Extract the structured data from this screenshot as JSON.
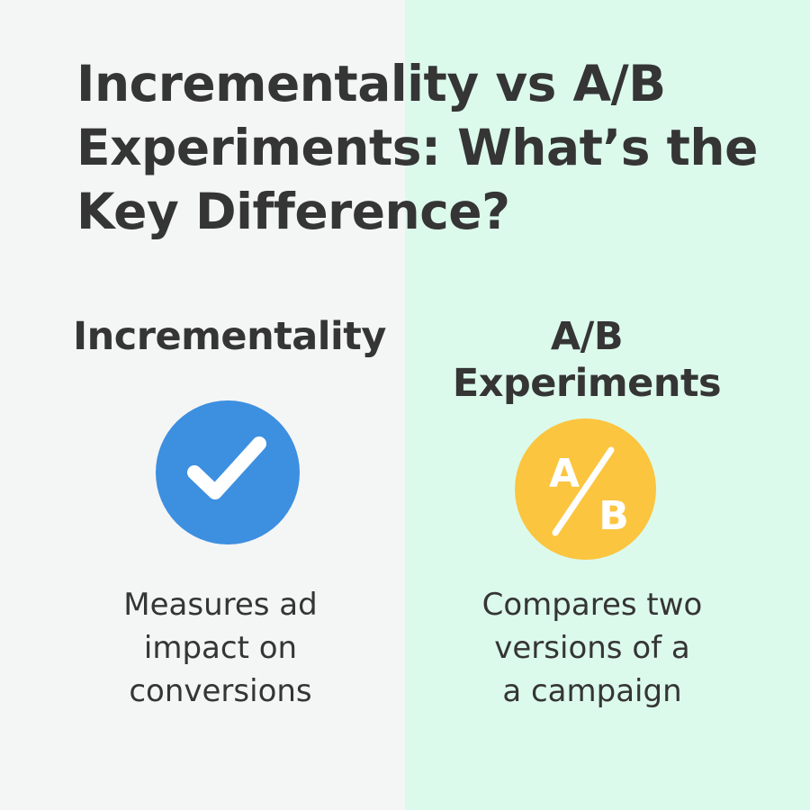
{
  "title": "Incrementality vs A/B Experiments: What’s the Key Difference?",
  "colors": {
    "left_bg": "#f4f5f5",
    "right_bg": "#dcfaec",
    "check_circle": "#3d8fe0",
    "ab_circle": "#fbc53f",
    "text": "#353535"
  },
  "left": {
    "heading": "Incrementality",
    "icon": "checkmark-icon",
    "description": [
      "Measures ad",
      "impact on",
      "conversions"
    ]
  },
  "right": {
    "heading": [
      "A/B",
      "Experiments"
    ],
    "icon": "ab-split-icon",
    "icon_letters": [
      "A",
      "B"
    ],
    "description": [
      "Compares two",
      "versions of a",
      "a campaign"
    ]
  }
}
